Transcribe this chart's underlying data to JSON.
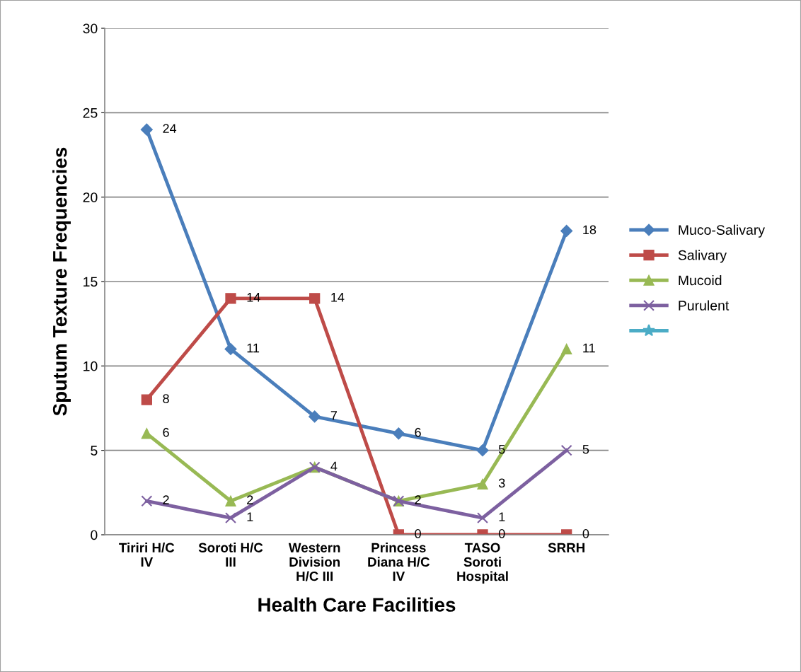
{
  "chart_data": {
    "type": "line",
    "xlabel": "Health Care Facilities",
    "ylabel": "Sputum Texture Frequencies",
    "categories": [
      "Tiriri H/C IV",
      "Soroti H/C III",
      "Western Division H/C III",
      "Princess Diana H/C IV",
      "TASO Soroti Hospital",
      "SRRH"
    ],
    "series": [
      {
        "name": "Muco-Salivary",
        "color": "#4a7ebb",
        "marker": "diamond",
        "values": [
          24,
          11,
          7,
          6,
          5,
          18
        ]
      },
      {
        "name": "Salivary",
        "color": "#be4b48",
        "marker": "square",
        "values": [
          8,
          14,
          14,
          0,
          0,
          0
        ]
      },
      {
        "name": "Mucoid",
        "color": "#98b954",
        "marker": "triangle",
        "values": [
          6,
          2,
          4,
          2,
          3,
          11
        ]
      },
      {
        "name": "Purulent",
        "color": "#7d60a0",
        "marker": "cross",
        "values": [
          2,
          1,
          4,
          2,
          1,
          5
        ],
        "value_labels": [
          "2",
          "1",
          null,
          null,
          "1",
          "5"
        ]
      },
      {
        "color": "#4bacc6",
        "marker": "star",
        "values": [
          null,
          null,
          null,
          null,
          null,
          null
        ]
      }
    ],
    "ylim": [
      0,
      30
    ],
    "yticks": [
      0,
      5,
      10,
      15,
      20,
      25,
      30
    ],
    "grid": "y",
    "legend": "right",
    "data_labels": true,
    "line_style": "solid"
  }
}
